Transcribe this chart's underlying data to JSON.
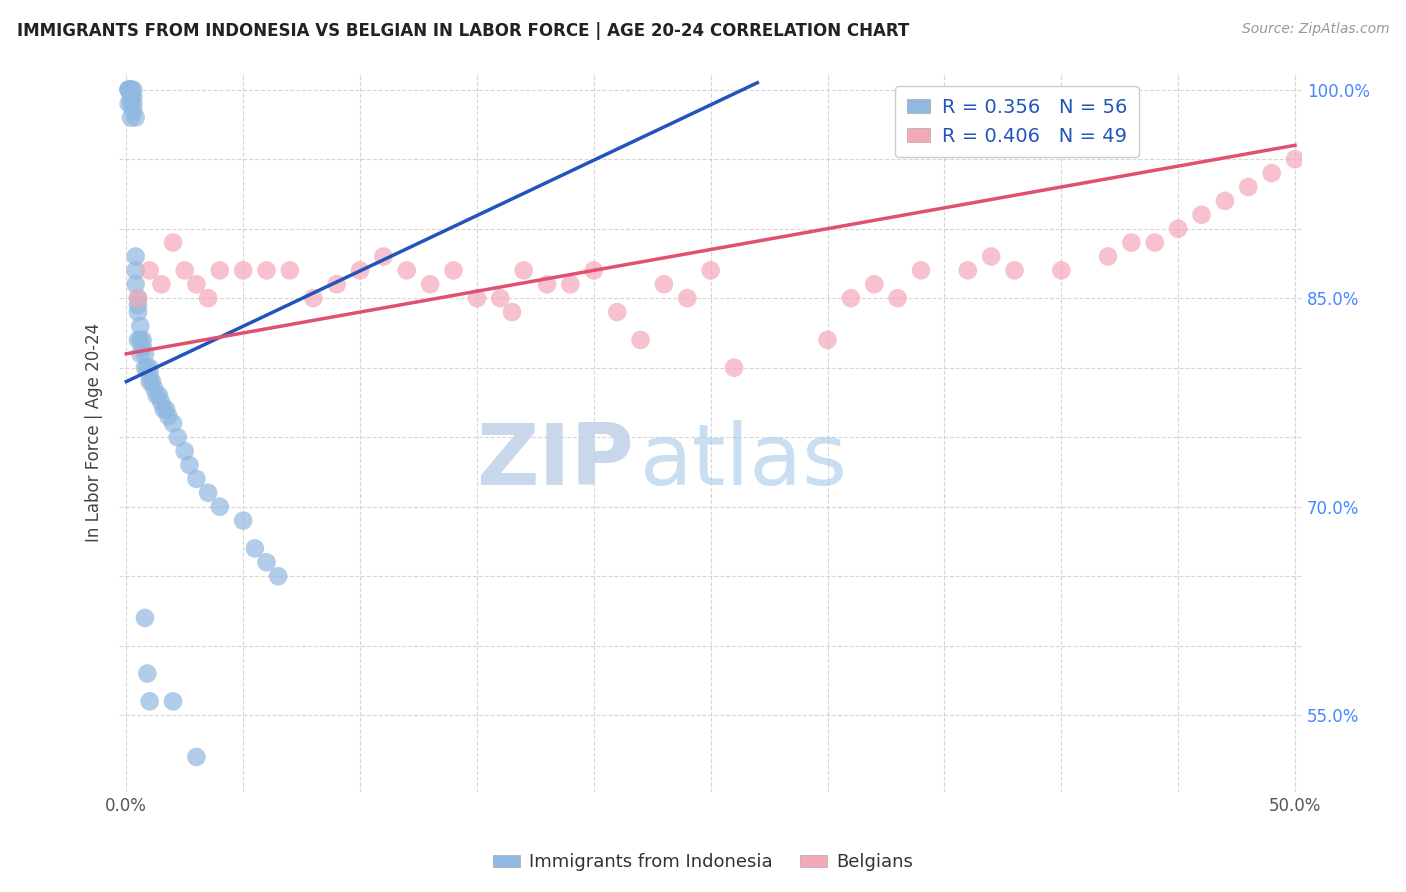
{
  "title": "IMMIGRANTS FROM INDONESIA VS BELGIAN IN LABOR FORCE | AGE 20-24 CORRELATION CHART",
  "source": "Source: ZipAtlas.com",
  "ylabel": "In Labor Force | Age 20-24",
  "xlim": [
    0.0,
    0.5
  ],
  "ylim": [
    0.5,
    1.005
  ],
  "ytick_vals": [
    0.55,
    0.6,
    0.65,
    0.7,
    0.75,
    0.8,
    0.85,
    0.9,
    0.95,
    1.0
  ],
  "ytick_labels": [
    "55.0%",
    "",
    "",
    "70.0%",
    "",
    "",
    "85.0%",
    "",
    "",
    "100.0%"
  ],
  "xtick_vals": [
    0.0,
    0.05,
    0.1,
    0.15,
    0.2,
    0.25,
    0.3,
    0.35,
    0.4,
    0.45,
    0.5
  ],
  "xtick_labels": [
    "0.0%",
    "",
    "",
    "",
    "",
    "",
    "",
    "",
    "",
    "",
    "50.0%"
  ],
  "legend_blue_label": "R = 0.356   N = 56",
  "legend_pink_label": "R = 0.406   N = 49",
  "legend_bottom_blue": "Immigrants from Indonesia",
  "legend_bottom_pink": "Belgians",
  "blue_color": "#90B8E0",
  "pink_color": "#F4A8B8",
  "blue_line_color": "#2255BB",
  "pink_line_color": "#E05070",
  "watermark_zip": "ZIP",
  "watermark_atlas": "atlas",
  "grid_color": "#CCCCCC",
  "bg_color": "#FFFFFF",
  "blue_x": [
    0.001,
    0.001,
    0.001,
    0.001,
    0.002,
    0.002,
    0.002,
    0.002,
    0.002,
    0.003,
    0.003,
    0.003,
    0.003,
    0.004,
    0.004,
    0.004,
    0.004,
    0.005,
    0.005,
    0.005,
    0.005,
    0.006,
    0.006,
    0.006,
    0.007,
    0.007,
    0.008,
    0.008,
    0.009,
    0.01,
    0.01,
    0.01,
    0.011,
    0.012,
    0.013,
    0.014,
    0.015,
    0.016,
    0.017,
    0.018,
    0.02,
    0.022,
    0.025,
    0.027,
    0.03,
    0.035,
    0.04,
    0.05,
    0.055,
    0.06,
    0.065,
    0.008,
    0.009,
    0.01,
    0.02,
    0.03
  ],
  "blue_y": [
    1.0,
    1.0,
    1.0,
    0.99,
    1.0,
    1.0,
    0.995,
    0.99,
    0.98,
    1.0,
    0.995,
    0.99,
    0.985,
    0.98,
    0.88,
    0.86,
    0.87,
    0.85,
    0.845,
    0.84,
    0.82,
    0.83,
    0.82,
    0.81,
    0.82,
    0.815,
    0.81,
    0.8,
    0.8,
    0.8,
    0.795,
    0.79,
    0.79,
    0.785,
    0.78,
    0.78,
    0.775,
    0.77,
    0.77,
    0.765,
    0.76,
    0.75,
    0.74,
    0.73,
    0.72,
    0.71,
    0.7,
    0.69,
    0.67,
    0.66,
    0.65,
    0.62,
    0.58,
    0.56,
    0.56,
    0.52
  ],
  "pink_x": [
    0.005,
    0.01,
    0.015,
    0.02,
    0.025,
    0.03,
    0.035,
    0.04,
    0.05,
    0.06,
    0.07,
    0.08,
    0.09,
    0.1,
    0.11,
    0.12,
    0.13,
    0.14,
    0.15,
    0.16,
    0.165,
    0.17,
    0.18,
    0.19,
    0.2,
    0.21,
    0.22,
    0.23,
    0.24,
    0.25,
    0.26,
    0.3,
    0.31,
    0.32,
    0.33,
    0.34,
    0.36,
    0.37,
    0.38,
    0.4,
    0.42,
    0.43,
    0.44,
    0.45,
    0.46,
    0.47,
    0.48,
    0.49,
    0.5
  ],
  "pink_y": [
    0.85,
    0.87,
    0.86,
    0.89,
    0.87,
    0.86,
    0.85,
    0.87,
    0.87,
    0.87,
    0.87,
    0.85,
    0.86,
    0.87,
    0.88,
    0.87,
    0.86,
    0.87,
    0.85,
    0.85,
    0.84,
    0.87,
    0.86,
    0.86,
    0.87,
    0.84,
    0.82,
    0.86,
    0.85,
    0.87,
    0.8,
    0.82,
    0.85,
    0.86,
    0.85,
    0.87,
    0.87,
    0.88,
    0.87,
    0.87,
    0.88,
    0.89,
    0.89,
    0.9,
    0.91,
    0.92,
    0.93,
    0.94,
    0.95
  ],
  "blue_line_x": [
    0.0,
    0.27
  ],
  "blue_line_y": [
    0.79,
    1.005
  ],
  "pink_line_x": [
    0.0,
    0.5
  ],
  "pink_line_y": [
    0.81,
    0.96
  ]
}
